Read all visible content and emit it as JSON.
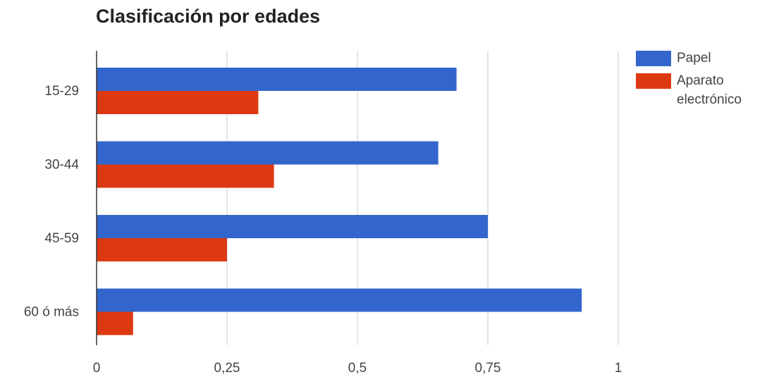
{
  "chart_data": {
    "type": "bar",
    "orientation": "horizontal",
    "title": "Clasificación por edades",
    "categories": [
      "15-29",
      "30-44",
      "45-59",
      "60 ó más"
    ],
    "series": [
      {
        "name": "Papel",
        "color": "#3366cc",
        "values": [
          0.69,
          0.655,
          0.75,
          0.93
        ]
      },
      {
        "name": "Aparato electrónico",
        "color": "#dc3912",
        "values": [
          0.31,
          0.34,
          0.25,
          0.07
        ]
      }
    ],
    "xlim": [
      0,
      1
    ],
    "xticks": [
      0,
      0.25,
      0.5,
      0.75,
      1
    ],
    "xtick_labels": [
      "0",
      "0,25",
      "0,5",
      "0,75",
      "1"
    ],
    "grid": true,
    "legend_position": "right"
  }
}
